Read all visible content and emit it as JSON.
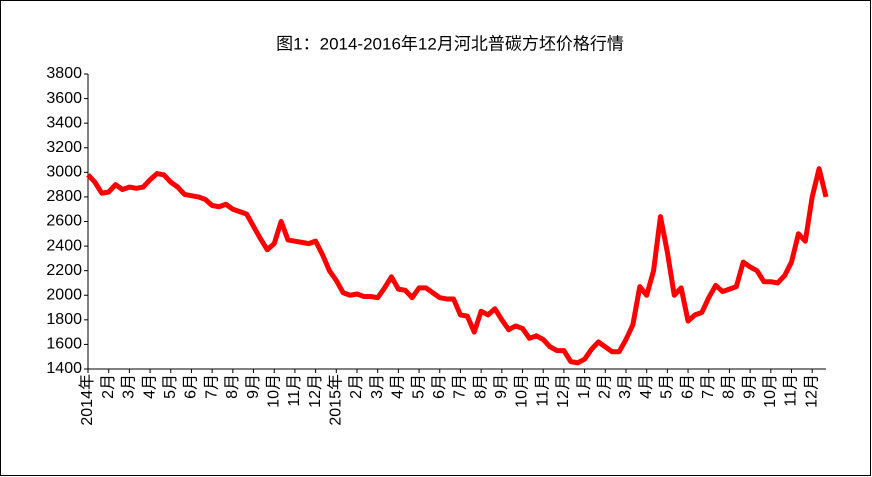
{
  "chart_data": {
    "type": "line",
    "title": "图1：2014-2016年12月河北普碳方坯价格行情",
    "categories": [
      "2014年",
      null,
      null,
      "2月",
      null,
      null,
      "3月",
      null,
      null,
      "4月",
      null,
      null,
      "5月",
      null,
      null,
      "6月",
      null,
      null,
      "7月",
      null,
      null,
      "8月",
      null,
      null,
      "9月",
      null,
      null,
      "10月",
      null,
      null,
      "11月",
      null,
      null,
      "12月",
      null,
      null,
      "2015年",
      null,
      null,
      "2月",
      null,
      null,
      "3月",
      null,
      null,
      "4月",
      null,
      null,
      "5月",
      null,
      null,
      "6月",
      null,
      null,
      "7月",
      null,
      null,
      "8月",
      null,
      null,
      "9月",
      null,
      null,
      "10月",
      null,
      null,
      "11月",
      null,
      null,
      "12月",
      null,
      null,
      "1月",
      null,
      null,
      "2月",
      null,
      null,
      "3月",
      null,
      null,
      "4月",
      null,
      null,
      "5月",
      null,
      null,
      "6月",
      null,
      null,
      "7月",
      null,
      null,
      "8月",
      null,
      null,
      "9月",
      null,
      null,
      "10月",
      null,
      null,
      "11月",
      null,
      null,
      "12月",
      null,
      null
    ],
    "series": [
      {
        "color": "#ff0000",
        "values": [
          2980,
          2920,
          2830,
          2840,
          2900,
          2860,
          2880,
          2870,
          2880,
          2940,
          2990,
          2980,
          2920,
          2880,
          2820,
          2810,
          2800,
          2780,
          2730,
          2720,
          2740,
          2700,
          2680,
          2660,
          2560,
          2460,
          2370,
          2420,
          2600,
          2450,
          2440,
          2430,
          2420,
          2440,
          2330,
          2200,
          2120,
          2020,
          2000,
          2010,
          1990,
          1990,
          1980,
          2060,
          2150,
          2050,
          2040,
          1980,
          2060,
          2060,
          2020,
          1980,
          1970,
          1970,
          1840,
          1830,
          1700,
          1870,
          1840,
          1890,
          1800,
          1720,
          1750,
          1730,
          1650,
          1670,
          1640,
          1580,
          1550,
          1550,
          1460,
          1450,
          1480,
          1560,
          1620,
          1580,
          1540,
          1540,
          1640,
          1760,
          2070,
          2000,
          2200,
          2640,
          2350,
          2000,
          2060,
          1790,
          1840,
          1860,
          1980,
          2080,
          2030,
          2050,
          2070,
          2270,
          2230,
          2200,
          2110,
          2110,
          2100,
          2160,
          2270,
          2500,
          2440,
          2800,
          3030,
          2800
        ]
      }
    ],
    "ylim": [
      1400,
      3800
    ],
    "yticks": [
      1400,
      1600,
      1800,
      2000,
      2200,
      2400,
      2600,
      2800,
      3000,
      3200,
      3400,
      3600,
      3800
    ]
  }
}
